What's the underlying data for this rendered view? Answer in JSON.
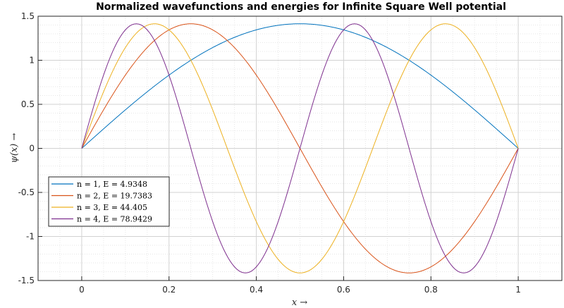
{
  "chart_data": {
    "type": "line",
    "title": "Normalized wavefunctions and energies for Infinite Square Well potential",
    "xlabel": "x →",
    "ylabel": "ψ(x) →",
    "xlim": [
      -0.1,
      1.1
    ],
    "ylim": [
      -1.5,
      1.5
    ],
    "xticks": [
      "0",
      "0.2",
      "0.4",
      "0.6",
      "0.8",
      "1"
    ],
    "yticks": [
      "1.5",
      "1",
      "0.5",
      "0",
      "-0.5",
      "-1",
      "-1.5"
    ],
    "grid": true,
    "minor_grid": true,
    "legend_position": "lower-left",
    "series": [
      {
        "name": "n = 1, E = 4.9348",
        "n": 1,
        "color": "#0072bd"
      },
      {
        "name": "n = 2, E = 19.7383",
        "n": 2,
        "color": "#d95319"
      },
      {
        "name": "n = 3, E = 44.405",
        "n": 3,
        "color": "#edb120"
      },
      {
        "name": "n = 4, E = 78.9429",
        "n": 4,
        "color": "#7e2f8e"
      }
    ],
    "function": "psi_n(x) = sqrt(2) * sin(n * pi * x), x in [0, 1]"
  }
}
